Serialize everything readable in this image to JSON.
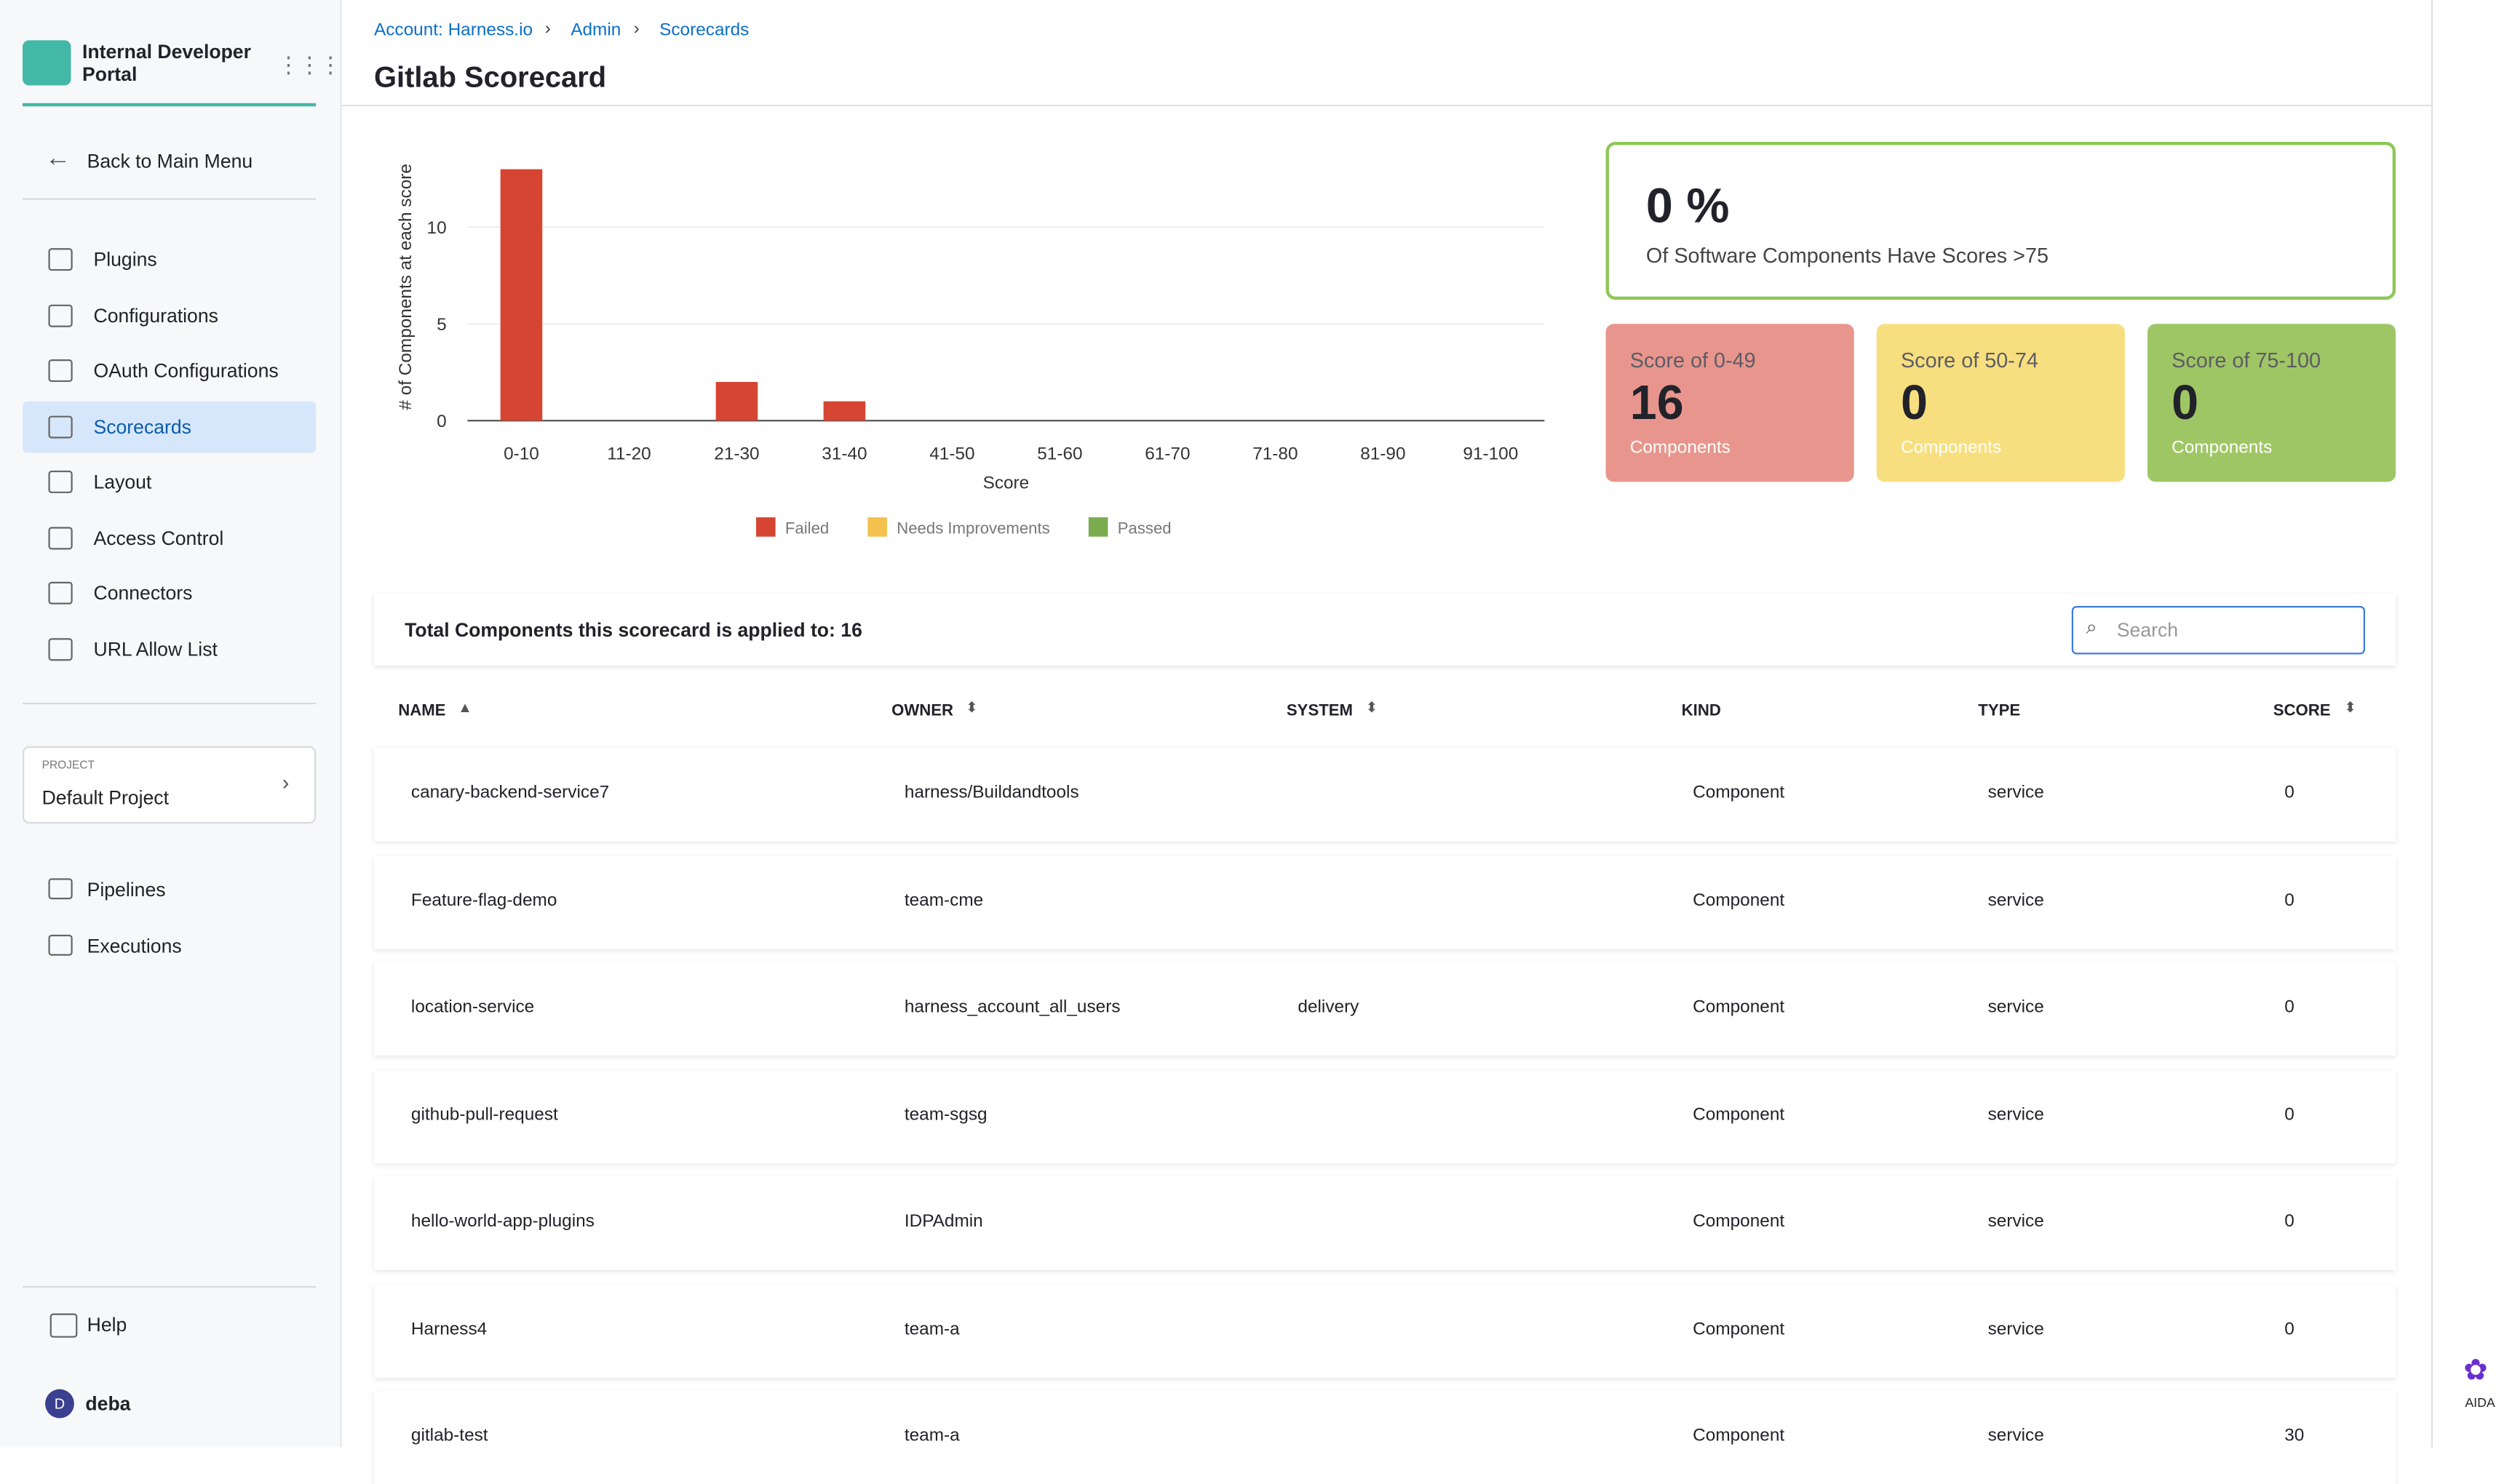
{
  "sidebar": {
    "app_name": "Internal Developer Portal",
    "back": "Back to Main Menu",
    "nav": [
      "Plugins",
      "Configurations",
      "OAuth Configurations",
      "Scorecards",
      "Layout",
      "Access Control",
      "Connectors",
      "URL Allow List"
    ],
    "project_label": "PROJECT",
    "project": "Default Project",
    "nav2": [
      "Pipelines",
      "Executions"
    ],
    "help": "Help",
    "user_initial": "D",
    "user": "deba"
  },
  "header": {
    "breadcrumbs": [
      "Account: Harness.io",
      "Admin",
      "Scorecards"
    ],
    "title": "Gitlab Scorecard"
  },
  "chart_data": {
    "type": "bar",
    "ylabel": "# of Components at each score",
    "xlabel": "Score",
    "categories": [
      "0-10",
      "11-20",
      "21-30",
      "31-40",
      "41-50",
      "51-60",
      "61-70",
      "71-80",
      "81-90",
      "91-100"
    ],
    "series": [
      {
        "name": "Failed",
        "color": "#d64532",
        "values": [
          13,
          0,
          2,
          1,
          0,
          0,
          0,
          0,
          0,
          0
        ]
      },
      {
        "name": "Needs Improvements",
        "color": "#f2c14e",
        "values": [
          0,
          0,
          0,
          0,
          0,
          0,
          0,
          0,
          0,
          0
        ]
      },
      {
        "name": "Passed",
        "color": "#7aac4f",
        "values": [
          0,
          0,
          0,
          0,
          0,
          0,
          0,
          0,
          0,
          0
        ]
      }
    ],
    "ylim": [
      0,
      13
    ],
    "yticks": [
      0,
      5,
      10
    ],
    "grid": true
  },
  "summary": {
    "percent": "0 %",
    "percent_text": "Of Software Components Have Scores >75",
    "cards": [
      {
        "label": "Score of 0-49",
        "value": 16,
        "unit": "Components",
        "color": "#e8968d"
      },
      {
        "label": "Score of 50-74",
        "value": 0,
        "unit": "Components",
        "color": "#f7df7f"
      },
      {
        "label": "Score of 75-100",
        "value": 0,
        "unit": "Components",
        "color": "#9fc664"
      }
    ]
  },
  "table": {
    "total_label": "Total Components this scorecard is applied to: 16",
    "search_placeholder": "Search",
    "columns": [
      "NAME",
      "OWNER",
      "SYSTEM",
      "KIND",
      "TYPE",
      "SCORE"
    ],
    "rows": [
      [
        "canary-backend-service7",
        "harness/Buildandtools",
        null,
        "Component",
        "service",
        0
      ],
      [
        "Feature-flag-demo",
        "team-cme",
        null,
        "Component",
        "service",
        0
      ],
      [
        "location-service",
        "harness_account_all_users",
        "delivery",
        "Component",
        "service",
        0
      ],
      [
        "github-pull-request",
        "team-sgsg",
        null,
        "Component",
        "service",
        0
      ],
      [
        "hello-world-app-plugins",
        "IDPAdmin",
        null,
        "Component",
        "service",
        0
      ],
      [
        "Harness4",
        "team-a",
        null,
        "Component",
        "service",
        0
      ],
      [
        "gitlab-test",
        "team-a",
        null,
        "Component",
        "service",
        30
      ]
    ]
  },
  "aida": "AIDA"
}
